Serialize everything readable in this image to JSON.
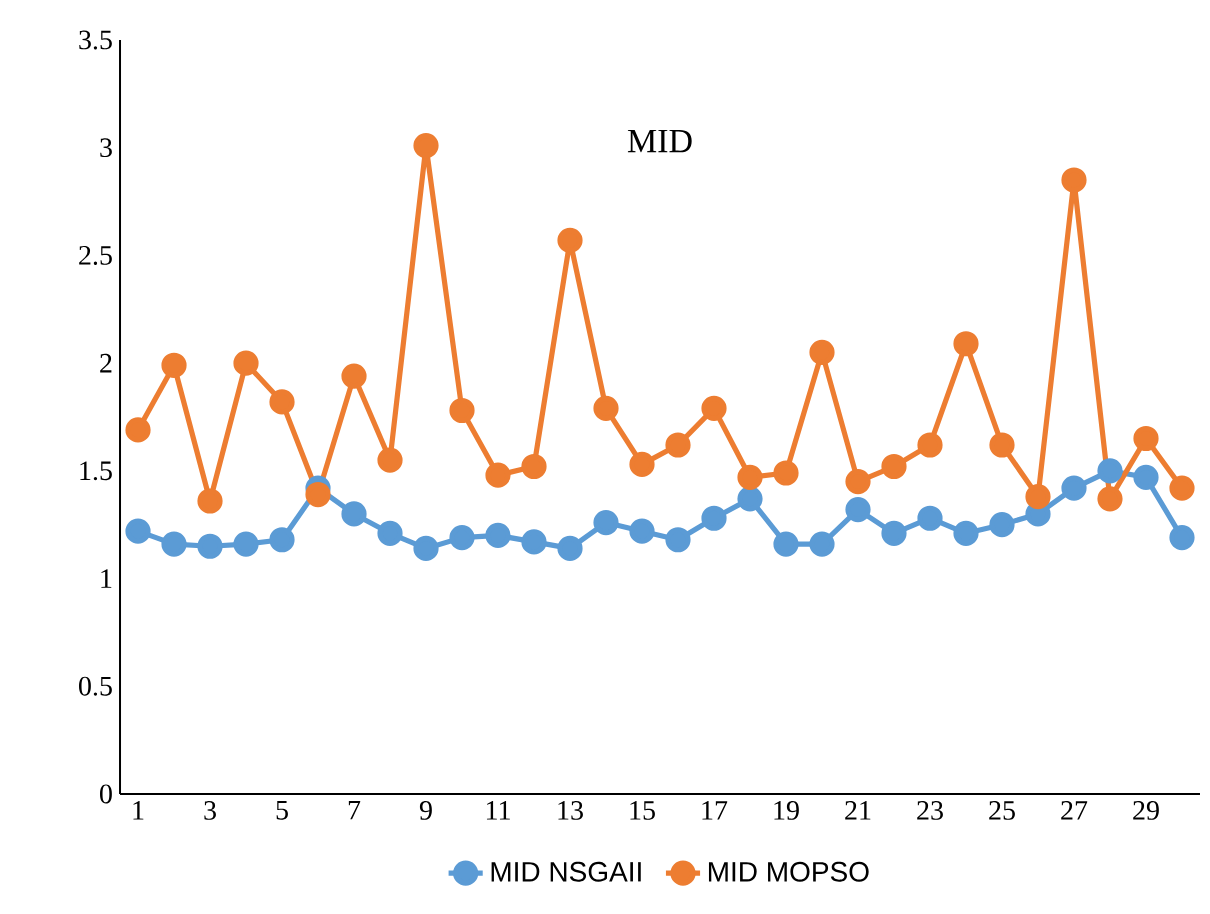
{
  "chart_data": {
    "type": "line",
    "title": "MID",
    "categories": [
      "1",
      null,
      "3",
      null,
      "5",
      null,
      "7",
      null,
      "9",
      null,
      "11",
      null,
      "13",
      null,
      "15",
      null,
      "17",
      null,
      "19",
      null,
      "21",
      null,
      "23",
      null,
      "25",
      null,
      "27",
      null,
      "29",
      null
    ],
    "series": [
      {
        "name": "MID NSGAII",
        "color": "#5b9bd5",
        "values": [
          1.22,
          1.16,
          1.15,
          1.16,
          1.18,
          1.42,
          1.3,
          1.21,
          1.14,
          1.19,
          1.2,
          1.17,
          1.14,
          1.26,
          1.22,
          1.18,
          1.28,
          1.37,
          1.16,
          1.16,
          1.32,
          1.21,
          1.28,
          1.21,
          1.25,
          1.3,
          1.42,
          1.5,
          1.47,
          1.19
        ]
      },
      {
        "name": "MID MOPSO",
        "color": "#ed7d31",
        "values": [
          1.69,
          1.99,
          1.36,
          2.0,
          1.82,
          1.39,
          1.94,
          1.55,
          3.01,
          1.78,
          1.48,
          1.52,
          2.57,
          1.79,
          1.53,
          1.62,
          1.79,
          1.47,
          1.49,
          2.05,
          1.45,
          1.52,
          1.62,
          2.09,
          1.62,
          1.38,
          2.85,
          1.37,
          1.65,
          1.42
        ]
      }
    ],
    "ylim": [
      0,
      3.5
    ],
    "yticks": [
      0,
      0.5,
      1,
      1.5,
      2,
      2.5,
      3,
      3.5
    ],
    "grid": false,
    "legend": "bottom",
    "marker": "circle",
    "line_style": "solid"
  }
}
